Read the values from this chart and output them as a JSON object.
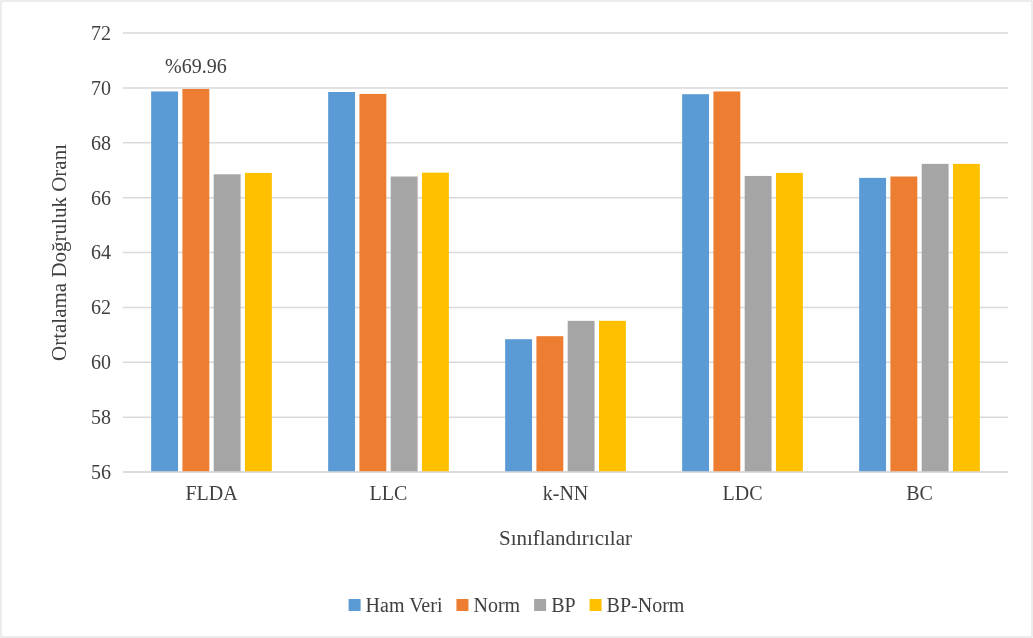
{
  "chart_data": {
    "type": "bar",
    "xlabel": "Sınıflandırıcılar",
    "ylabel": "Ortalama Doğruluk Oranı",
    "categories": [
      "FLDA",
      "LLC",
      "k-NN",
      "LDC",
      "BC"
    ],
    "series": [
      {
        "name": "Ham Veri",
        "color": "#5b9bd5",
        "values": [
          69.87,
          69.85,
          60.84,
          69.77,
          66.72
        ]
      },
      {
        "name": "Norm",
        "color": "#ed7d31",
        "values": [
          69.96,
          69.78,
          60.95,
          69.87,
          66.77
        ],
        "value_labels": [
          "%69.96",
          null,
          null,
          null,
          null
        ]
      },
      {
        "name": "BP",
        "color": "#a5a5a5",
        "values": [
          66.85,
          66.77,
          61.51,
          66.79,
          67.23
        ]
      },
      {
        "name": "BP-Norm",
        "color": "#ffc000",
        "values": [
          66.9,
          66.91,
          61.51,
          66.9,
          67.23
        ]
      }
    ],
    "ylim": [
      56,
      72
    ],
    "yticks": [
      56,
      58,
      60,
      62,
      64,
      66,
      68,
      70,
      72
    ],
    "grid": "y",
    "legend": "bottom"
  }
}
